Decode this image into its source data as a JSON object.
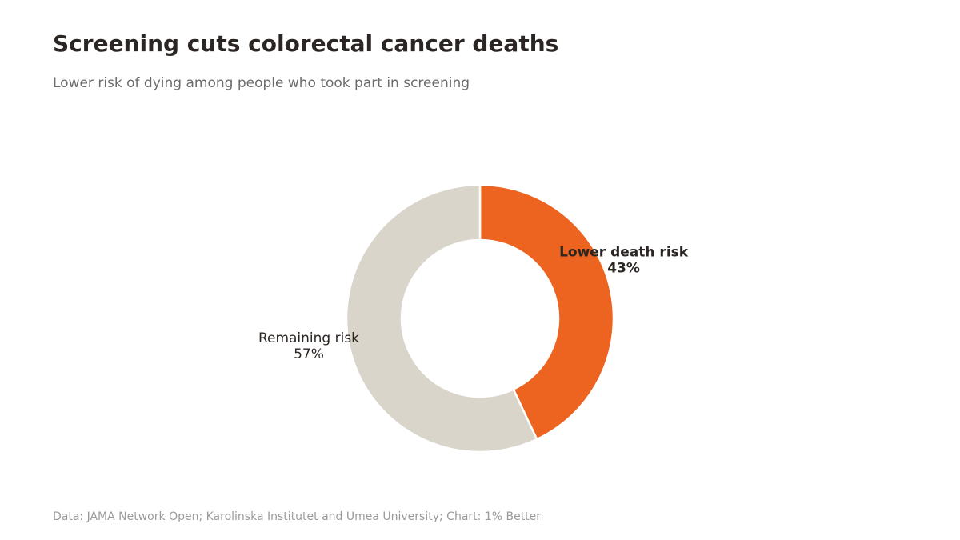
{
  "header": {
    "title": "Screening cuts colorectal cancer deaths",
    "subtitle": "Lower risk of dying among people who took part in screening"
  },
  "footer": {
    "source": "Data: JAMA Network Open; Karolinska Institutet and Umea University; Chart: 1% Better"
  },
  "chart_data": {
    "type": "pie",
    "style": "donut",
    "title": "Screening cuts colorectal cancer deaths",
    "subtitle": "Lower risk of dying among people who took part in screening",
    "slices": [
      {
        "label": "Lower death risk",
        "value": 43,
        "value_label": "43%",
        "color": "#ec6420",
        "emphasis": true
      },
      {
        "label": "Remaining risk",
        "value": 57,
        "value_label": "57%",
        "color": "#dad5cb",
        "emphasis": false
      }
    ],
    "legend": "none",
    "source": "Data: JAMA Network Open; Karolinska Institutet and Umea University; Chart: 1% Better"
  }
}
